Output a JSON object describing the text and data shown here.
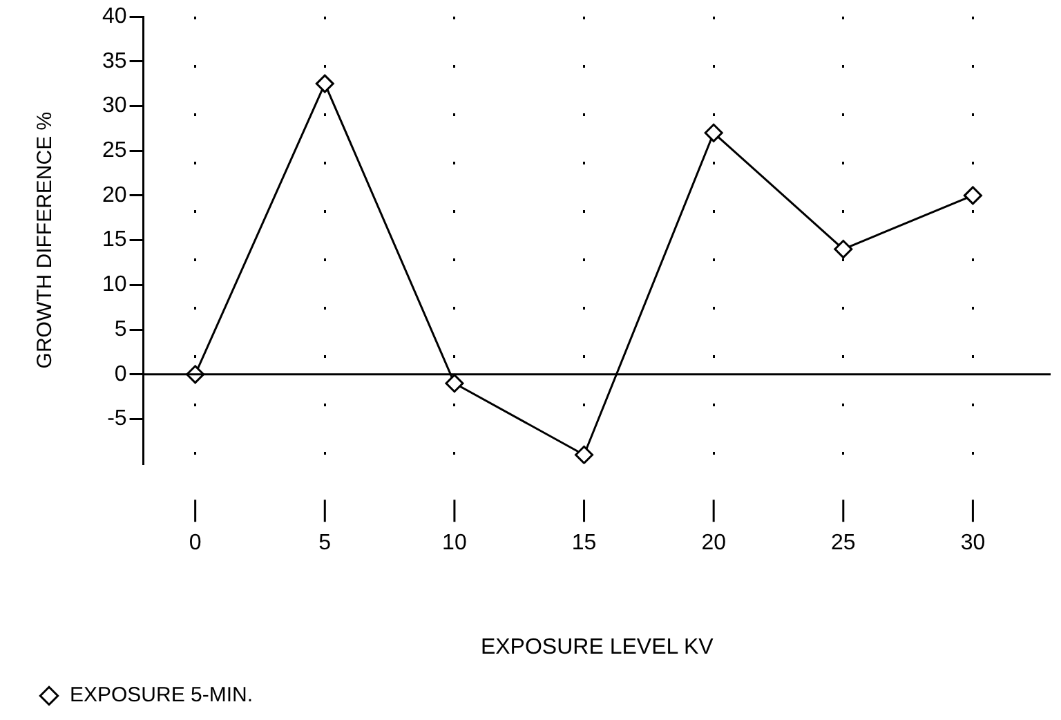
{
  "chart_data": {
    "type": "line",
    "xlabel": "EXPOSURE LEVEL KV",
    "ylabel": "GROWTH DIFFERENCE %",
    "x": [
      0,
      5,
      10,
      15,
      20,
      25,
      30
    ],
    "series": [
      {
        "name": "EXPOSURE 5-MIN.",
        "color": "#000000",
        "values": [
          0,
          32.5,
          -1,
          -9,
          27,
          14,
          20
        ]
      }
    ],
    "xlim": [
      -2,
      33
    ],
    "xticks": [
      0,
      5,
      10,
      15,
      20,
      25,
      30
    ],
    "ylim": [
      -10,
      40
    ],
    "yticks": [
      -5,
      0,
      5,
      10,
      15,
      20,
      25,
      30,
      35,
      40
    ],
    "ref_lines": [
      {
        "axis": "y",
        "value": 0
      }
    ],
    "grid": "x",
    "legend": "bottom left",
    "marker": "diamond",
    "line_style": "solid"
  }
}
